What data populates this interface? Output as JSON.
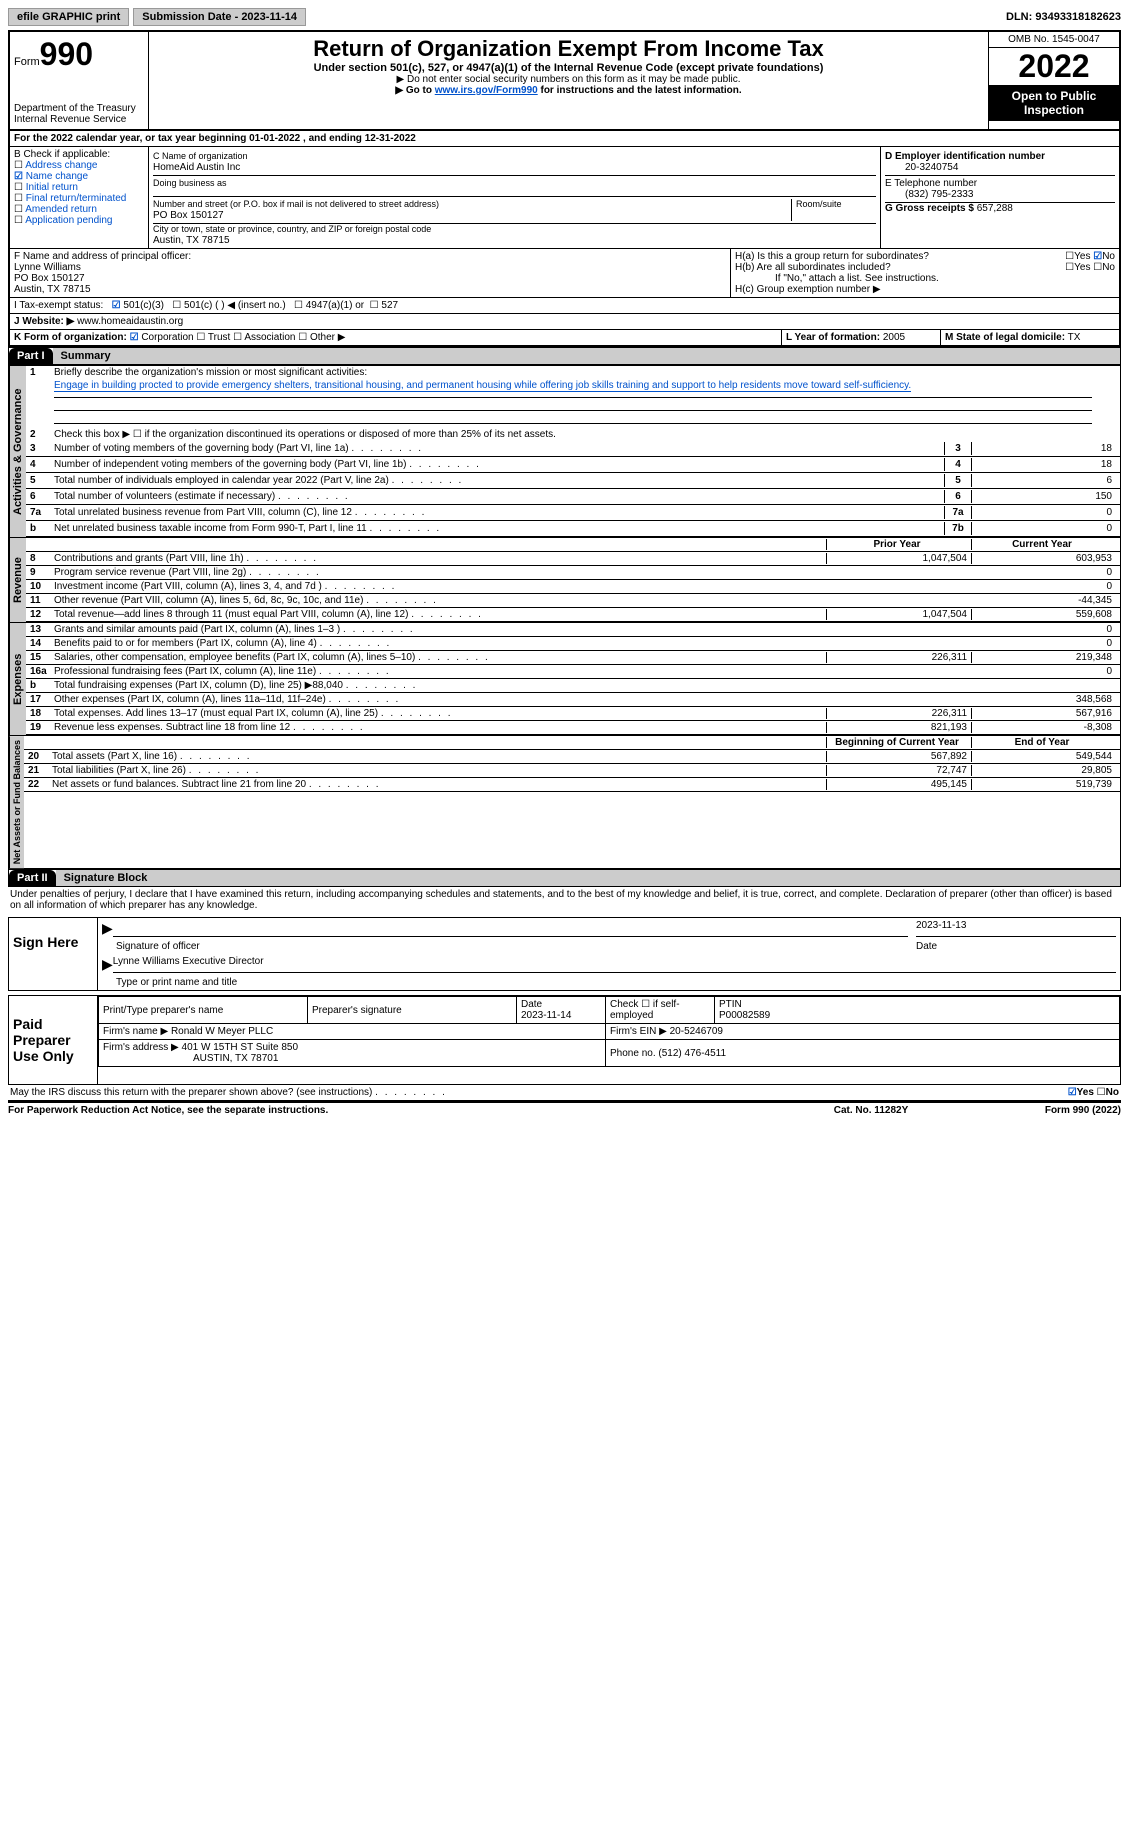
{
  "topbar": {
    "efile": "efile GRAPHIC print",
    "submission": "Submission Date - 2023-11-14",
    "dln": "DLN: 93493318182623"
  },
  "header": {
    "form_label": "Form",
    "form_num": "990",
    "dept": "Department of the Treasury",
    "irs": "Internal Revenue Service",
    "title": "Return of Organization Exempt From Income Tax",
    "subtitle": "Under section 501(c), 527, or 4947(a)(1) of the Internal Revenue Code (except private foundations)",
    "warn": "▶ Do not enter social security numbers on this form as it may be made public.",
    "goto_pre": "▶ Go to ",
    "goto_link": "www.irs.gov/Form990",
    "goto_post": " for instructions and the latest information.",
    "omb": "OMB No. 1545-0047",
    "year": "2022",
    "open": "Open to Public Inspection"
  },
  "A": "For the 2022 calendar year, or tax year beginning 01-01-2022   , and ending 12-31-2022",
  "B": {
    "label": "B Check if applicable:",
    "items": [
      "Address change",
      "Name change",
      "Initial return",
      "Final return/terminated",
      "Amended return",
      "Application pending"
    ],
    "checked_idx": 1
  },
  "C": {
    "name_label": "C Name of organization",
    "name": "HomeAid Austin Inc",
    "dba_label": "Doing business as",
    "addr_label": "Number and street (or P.O. box if mail is not delivered to street address)",
    "room_label": "Room/suite",
    "addr": "PO Box 150127",
    "city_label": "City or town, state or province, country, and ZIP or foreign postal code",
    "city": "Austin, TX  78715"
  },
  "D": {
    "label": "D Employer identification number",
    "val": "20-3240754"
  },
  "E": {
    "label": "E Telephone number",
    "val": "(832) 795-2333"
  },
  "G": {
    "label": "G Gross receipts $",
    "val": "657,288"
  },
  "F": {
    "label": "F  Name and address of principal officer:",
    "name": "Lynne Williams",
    "addr1": "PO Box 150127",
    "addr2": "Austin, TX  78715"
  },
  "H": {
    "a": "H(a)  Is this a group return for subordinates?",
    "b": "H(b)  Are all subordinates included?",
    "b_note": "If \"No,\" attach a list. See instructions.",
    "c": "H(c)  Group exemption number ▶",
    "yes": "Yes",
    "no": "No"
  },
  "I": {
    "label": "I   Tax-exempt status:",
    "o1": "501(c)(3)",
    "o2": "501(c) (  ) ◀ (insert no.)",
    "o3": "4947(a)(1) or",
    "o4": "527"
  },
  "J": {
    "label": "J   Website: ▶ ",
    "val": "www.homeaidaustin.org"
  },
  "K": {
    "label": "K Form of organization:",
    "o1": "Corporation",
    "o2": "Trust",
    "o3": "Association",
    "o4": "Other ▶"
  },
  "L": {
    "label": "L Year of formation:",
    "val": "2005"
  },
  "M": {
    "label": "M State of legal domicile:",
    "val": "TX"
  },
  "part1": {
    "hdr": "Part I",
    "title": "Summary"
  },
  "summary": {
    "l1_label": "Briefly describe the organization's mission or most significant activities:",
    "l1_text": "Engage in building procted to provide emergency shelters, transitional housing, and permanent housing while offering job skills training and support to help residents move toward self-sufficiency.",
    "l2": "Check this box ▶ ☐  if the organization discontinued its operations or disposed of more than 25% of its net assets.",
    "rows_gov": [
      {
        "n": "3",
        "t": "Number of voting members of the governing body (Part VI, line 1a)",
        "b": "3",
        "v": "18"
      },
      {
        "n": "4",
        "t": "Number of independent voting members of the governing body (Part VI, line 1b)",
        "b": "4",
        "v": "18"
      },
      {
        "n": "5",
        "t": "Total number of individuals employed in calendar year 2022 (Part V, line 2a)",
        "b": "5",
        "v": "6"
      },
      {
        "n": "6",
        "t": "Total number of volunteers (estimate if necessary)",
        "b": "6",
        "v": "150"
      },
      {
        "n": "7a",
        "t": "Total unrelated business revenue from Part VIII, column (C), line 12",
        "b": "7a",
        "v": "0"
      },
      {
        "n": "b",
        "t": "Net unrelated business taxable income from Form 990-T, Part I, line 11",
        "b": "7b",
        "v": "0"
      }
    ],
    "hdr_prior": "Prior Year",
    "hdr_curr": "Current Year",
    "rows_rev": [
      {
        "n": "8",
        "t": "Contributions and grants (Part VIII, line 1h)",
        "p": "1,047,504",
        "c": "603,953"
      },
      {
        "n": "9",
        "t": "Program service revenue (Part VIII, line 2g)",
        "p": "",
        "c": "0"
      },
      {
        "n": "10",
        "t": "Investment income (Part VIII, column (A), lines 3, 4, and 7d )",
        "p": "",
        "c": "0"
      },
      {
        "n": "11",
        "t": "Other revenue (Part VIII, column (A), lines 5, 6d, 8c, 9c, 10c, and 11e)",
        "p": "",
        "c": "-44,345"
      },
      {
        "n": "12",
        "t": "Total revenue—add lines 8 through 11 (must equal Part VIII, column (A), line 12)",
        "p": "1,047,504",
        "c": "559,608"
      }
    ],
    "rows_exp": [
      {
        "n": "13",
        "t": "Grants and similar amounts paid (Part IX, column (A), lines 1–3 )",
        "p": "",
        "c": "0"
      },
      {
        "n": "14",
        "t": "Benefits paid to or for members (Part IX, column (A), line 4)",
        "p": "",
        "c": "0"
      },
      {
        "n": "15",
        "t": "Salaries, other compensation, employee benefits (Part IX, column (A), lines 5–10)",
        "p": "226,311",
        "c": "219,348"
      },
      {
        "n": "16a",
        "t": "Professional fundraising fees (Part IX, column (A), line 11e)",
        "p": "",
        "c": "0"
      },
      {
        "n": "b",
        "t": "Total fundraising expenses (Part IX, column (D), line 25) ▶88,040",
        "p": "GRAY",
        "c": "GRAY"
      },
      {
        "n": "17",
        "t": "Other expenses (Part IX, column (A), lines 11a–11d, 11f–24e)",
        "p": "",
        "c": "348,568"
      },
      {
        "n": "18",
        "t": "Total expenses. Add lines 13–17 (must equal Part IX, column (A), line 25)",
        "p": "226,311",
        "c": "567,916"
      },
      {
        "n": "19",
        "t": "Revenue less expenses. Subtract line 18 from line 12",
        "p": "821,193",
        "c": "-8,308"
      }
    ],
    "hdr_beg": "Beginning of Current Year",
    "hdr_end": "End of Year",
    "rows_net": [
      {
        "n": "20",
        "t": "Total assets (Part X, line 16)",
        "p": "567,892",
        "c": "549,544"
      },
      {
        "n": "21",
        "t": "Total liabilities (Part X, line 26)",
        "p": "72,747",
        "c": "29,805"
      },
      {
        "n": "22",
        "t": "Net assets or fund balances. Subtract line 21 from line 20",
        "p": "495,145",
        "c": "519,739"
      }
    ],
    "vlabels": {
      "gov": "Activities & Governance",
      "rev": "Revenue",
      "exp": "Expenses",
      "net": "Net Assets or Fund Balances"
    }
  },
  "part2": {
    "hdr": "Part II",
    "title": "Signature Block"
  },
  "sig": {
    "decl": "Under penalties of perjury, I declare that I have examined this return, including accompanying schedules and statements, and to the best of my knowledge and belief, it is true, correct, and complete. Declaration of preparer (other than officer) is based on all information of which preparer has any knowledge.",
    "sign_here": "Sign Here",
    "sig_officer": "Signature of officer",
    "date": "Date",
    "date_val": "2023-11-13",
    "name_title": "Lynne Williams  Executive Director",
    "type_name": "Type or print name and title",
    "paid": "Paid Preparer Use Only",
    "p_name_label": "Print/Type preparer's name",
    "p_sig_label": "Preparer's signature",
    "p_date_label": "Date",
    "p_date": "2023-11-14",
    "p_check": "Check ☐ if self-employed",
    "ptin_label": "PTIN",
    "ptin": "P00082589",
    "firm_name_label": "Firm's name    ▶",
    "firm_name": "Ronald W Meyer PLLC",
    "firm_ein_label": "Firm's EIN ▶",
    "firm_ein": "20-5246709",
    "firm_addr_label": "Firm's address ▶",
    "firm_addr": "401 W 15TH ST Suite 850",
    "firm_city": "AUSTIN, TX  78701",
    "phone_label": "Phone no.",
    "phone": "(512) 476-4511",
    "discuss": "May the IRS discuss this return with the preparer shown above? (see instructions)"
  },
  "footer": {
    "left": "For Paperwork Reduction Act Notice, see the separate instructions.",
    "mid": "Cat. No. 11282Y",
    "right": "Form 990 (2022)"
  }
}
